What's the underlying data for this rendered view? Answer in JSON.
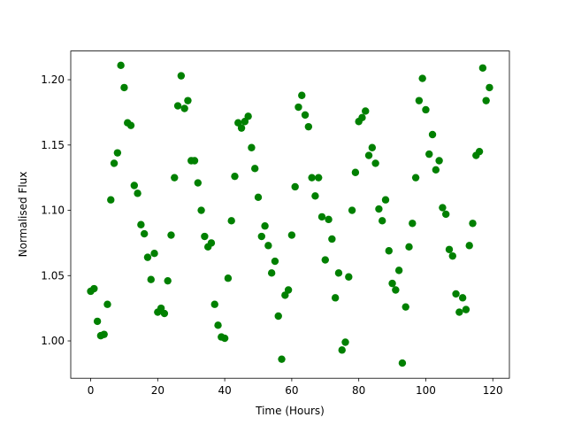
{
  "chart_data": {
    "type": "scatter",
    "xlabel": "Time (Hours)",
    "ylabel": "Normalised Flux",
    "color": "#008000",
    "grid": false,
    "x": [
      0,
      1,
      2,
      3,
      4,
      5,
      6,
      7,
      8,
      9,
      10,
      11,
      12,
      13,
      14,
      15,
      16,
      17,
      18,
      19,
      20,
      21,
      22,
      23,
      24,
      25,
      26,
      27,
      28,
      29,
      30,
      31,
      32,
      33,
      34,
      35,
      36,
      37,
      38,
      39,
      40,
      41,
      42,
      43,
      44,
      45,
      46,
      47,
      48,
      49,
      50,
      51,
      52,
      53,
      54,
      55,
      56,
      57,
      58,
      59,
      60,
      61,
      62,
      63,
      64,
      65,
      66,
      67,
      68,
      69,
      70,
      71,
      72,
      73,
      74,
      75,
      76,
      77,
      78,
      79,
      80,
      81,
      82,
      83,
      84,
      85,
      86,
      87,
      88,
      89,
      90,
      91,
      92,
      93,
      94,
      95,
      96,
      97,
      98,
      99,
      100,
      101,
      102,
      103,
      104,
      105,
      106,
      107,
      108,
      109,
      110,
      111,
      112,
      113,
      114,
      115,
      116,
      117,
      118,
      119
    ],
    "y": [
      1.038,
      1.04,
      1.015,
      1.004,
      1.005,
      1.028,
      1.108,
      1.136,
      1.144,
      1.211,
      1.194,
      1.167,
      1.165,
      1.119,
      1.113,
      1.089,
      1.082,
      1.064,
      1.047,
      1.067,
      1.022,
      1.025,
      1.021,
      1.046,
      1.081,
      1.125,
      1.18,
      1.203,
      1.178,
      1.184,
      1.138,
      1.138,
      1.121,
      1.1,
      1.08,
      1.072,
      1.075,
      1.028,
      1.012,
      1.003,
      1.002,
      1.048,
      1.092,
      1.126,
      1.167,
      1.163,
      1.168,
      1.172,
      1.148,
      1.132,
      1.11,
      1.08,
      1.088,
      1.073,
      1.052,
      1.061,
      1.019,
      0.986,
      1.035,
      1.039,
      1.081,
      1.118,
      1.179,
      1.188,
      1.173,
      1.164,
      1.125,
      1.111,
      1.125,
      1.095,
      1.062,
      1.093,
      1.078,
      1.033,
      1.052,
      0.993,
      0.999,
      1.049,
      1.1,
      1.129,
      1.168,
      1.171,
      1.176,
      1.142,
      1.148,
      1.136,
      1.101,
      1.092,
      1.108,
      1.069,
      1.044,
      1.039,
      1.054,
      0.983,
      1.026,
      1.072,
      1.09,
      1.125,
      1.184,
      1.201,
      1.177,
      1.143,
      1.158,
      1.131,
      1.138,
      1.102,
      1.097,
      1.07,
      1.065,
      1.036,
      1.022,
      1.033,
      1.024,
      1.073,
      1.09,
      1.142,
      1.145,
      1.209,
      1.184,
      1.194
    ],
    "xlim": [
      -5.95,
      124.95
    ],
    "ylim": [
      0.9714,
      1.222
    ],
    "xticks": [
      0,
      20,
      40,
      60,
      80,
      100,
      120
    ],
    "yticks": [
      {
        "value": 1.0,
        "label": "1.00"
      },
      1.05,
      {
        "value": 1.1,
        "label": "1.10"
      },
      1.15,
      {
        "value": 1.2,
        "label": "1.20"
      }
    ]
  }
}
